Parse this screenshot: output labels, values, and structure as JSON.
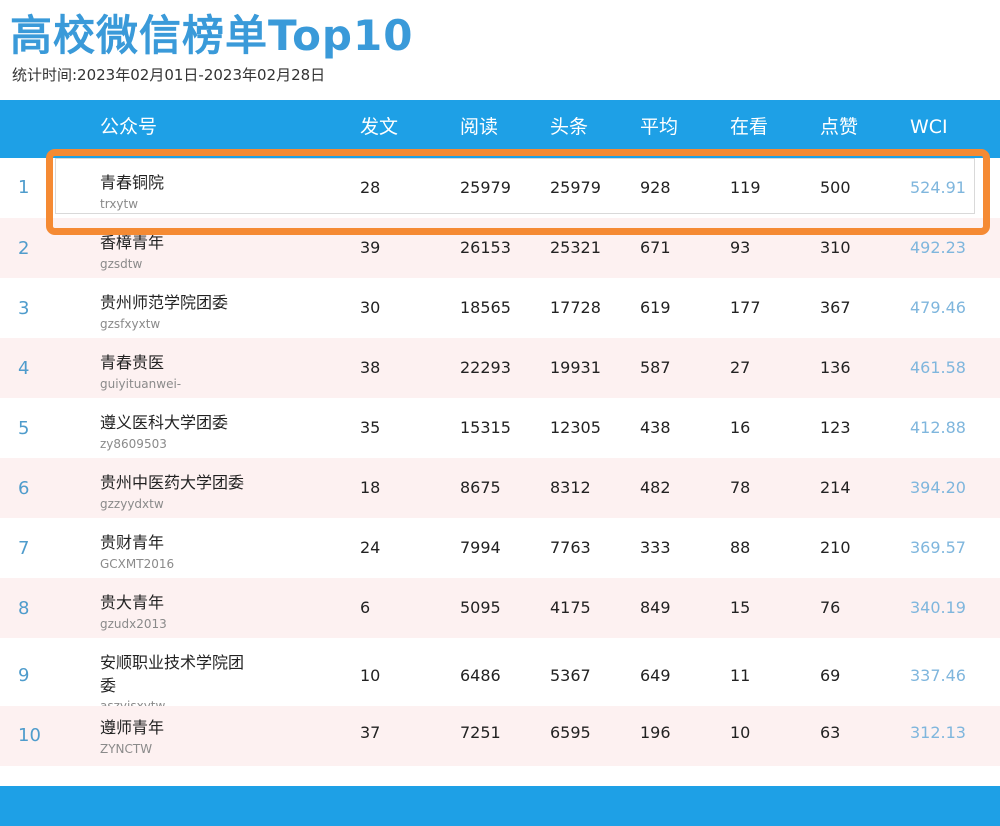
{
  "title": "高校微信榜单Top10",
  "period": "统计时间:2023年02月01日-2023年02月28日",
  "headers": {
    "account": "公众号",
    "posts": "发文",
    "reads": "阅读",
    "headline": "头条",
    "average": "平均",
    "watching": "在看",
    "likes": "点赞",
    "wci": "WCI"
  },
  "rows": [
    {
      "rank": "1",
      "name": "青春铜院",
      "id": "trxytw",
      "posts": "28",
      "reads": "25979",
      "headline": "25979",
      "average": "928",
      "watching": "119",
      "likes": "500",
      "wci": "524.91"
    },
    {
      "rank": "2",
      "name": "香樟青年",
      "id": "gzsdtw",
      "posts": "39",
      "reads": "26153",
      "headline": "25321",
      "average": "671",
      "watching": "93",
      "likes": "310",
      "wci": "492.23"
    },
    {
      "rank": "3",
      "name": "贵州师范学院团委",
      "id": "gzsfxyxtw",
      "posts": "30",
      "reads": "18565",
      "headline": "17728",
      "average": "619",
      "watching": "177",
      "likes": "367",
      "wci": "479.46"
    },
    {
      "rank": "4",
      "name": "青春贵医",
      "id": "guiyituanwei-",
      "posts": "38",
      "reads": "22293",
      "headline": "19931",
      "average": "587",
      "watching": "27",
      "likes": "136",
      "wci": "461.58"
    },
    {
      "rank": "5",
      "name": "遵义医科大学团委",
      "id": "zy8609503",
      "posts": "35",
      "reads": "15315",
      "headline": "12305",
      "average": "438",
      "watching": "16",
      "likes": "123",
      "wci": "412.88"
    },
    {
      "rank": "6",
      "name": "贵州中医药大学团委",
      "id": "gzzyydxtw",
      "posts": "18",
      "reads": "8675",
      "headline": "8312",
      "average": "482",
      "watching": "78",
      "likes": "214",
      "wci": "394.20"
    },
    {
      "rank": "7",
      "name": "贵财青年",
      "id": "GCXMT2016",
      "posts": "24",
      "reads": "7994",
      "headline": "7763",
      "average": "333",
      "watching": "88",
      "likes": "210",
      "wci": "369.57"
    },
    {
      "rank": "8",
      "name": "贵大青年",
      "id": "gzudx2013",
      "posts": "6",
      "reads": "5095",
      "headline": "4175",
      "average": "849",
      "watching": "15",
      "likes": "76",
      "wci": "340.19"
    },
    {
      "rank": "9",
      "name": "安顺职业技术学院团委",
      "id": "aszyjsxytw",
      "posts": "10",
      "reads": "6486",
      "headline": "5367",
      "average": "649",
      "watching": "11",
      "likes": "69",
      "wci": "337.46"
    },
    {
      "rank": "10",
      "name": "遵师青年",
      "id": "ZYNCTW",
      "posts": "37",
      "reads": "7251",
      "headline": "6595",
      "average": "196",
      "watching": "10",
      "likes": "63",
      "wci": "312.13"
    }
  ],
  "colors": {
    "title": "#3a9ad9",
    "header_bg": "#1ea0e6",
    "row_alt": "#fdf1f1",
    "highlight": "#f58a33",
    "wci": "#7fb6dd",
    "rank": "#4f9ccc"
  }
}
